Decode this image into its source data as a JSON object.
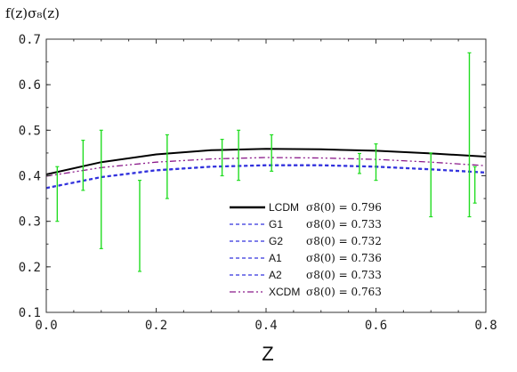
{
  "chart_data": {
    "type": "line",
    "ylabel": "f(z)σ₈(z)",
    "xlabel": "Z",
    "xlim": [
      0.0,
      0.8
    ],
    "ylim": [
      0.1,
      0.7
    ],
    "xticks": [
      "0.0",
      "0.2",
      "0.4",
      "0.6",
      "0.8"
    ],
    "yticks": [
      "0.1",
      "0.2",
      "0.3",
      "0.4",
      "0.5",
      "0.6",
      "0.7"
    ],
    "grid": false,
    "legend_position": "lower-right",
    "series": [
      {
        "name": "LCDM",
        "sigma8_label": "σ8(0) = 0.796",
        "color": "#000000",
        "dash": "solid",
        "x": [
          0.0,
          0.1,
          0.2,
          0.3,
          0.4,
          0.5,
          0.6,
          0.7,
          0.8
        ],
        "values": [
          0.403,
          0.43,
          0.447,
          0.456,
          0.459,
          0.458,
          0.455,
          0.449,
          0.442
        ]
      },
      {
        "name": "G1",
        "sigma8_label": "σ8(0) = 0.733",
        "color": "#3333dd",
        "dash": "dashed",
        "x": [
          0.0,
          0.1,
          0.2,
          0.3,
          0.4,
          0.5,
          0.6,
          0.7,
          0.8
        ],
        "values": [
          0.373,
          0.397,
          0.412,
          0.42,
          0.423,
          0.423,
          0.42,
          0.414,
          0.407
        ]
      },
      {
        "name": "G2",
        "sigma8_label": "σ8(0) = 0.732",
        "color": "#3333dd",
        "dash": "dashed",
        "x": [
          0.0,
          0.1,
          0.2,
          0.3,
          0.4,
          0.5,
          0.6,
          0.7,
          0.8
        ],
        "values": [
          0.372,
          0.396,
          0.411,
          0.419,
          0.422,
          0.422,
          0.419,
          0.413,
          0.406
        ]
      },
      {
        "name": "A1",
        "sigma8_label": "σ8(0) = 0.736",
        "color": "#3333dd",
        "dash": "dashed",
        "x": [
          0.0,
          0.1,
          0.2,
          0.3,
          0.4,
          0.5,
          0.6,
          0.7,
          0.8
        ],
        "values": [
          0.374,
          0.398,
          0.413,
          0.421,
          0.424,
          0.424,
          0.421,
          0.415,
          0.408
        ]
      },
      {
        "name": "A2",
        "sigma8_label": "σ8(0) = 0.733",
        "color": "#3333dd",
        "dash": "dashed",
        "x": [
          0.0,
          0.1,
          0.2,
          0.3,
          0.4,
          0.5,
          0.6,
          0.7,
          0.8
        ],
        "values": [
          0.373,
          0.397,
          0.412,
          0.42,
          0.423,
          0.423,
          0.42,
          0.414,
          0.407
        ]
      },
      {
        "name": "XCDM",
        "sigma8_label": "σ8(0) = 0.763",
        "color": "#8b1a8b",
        "dash": "dashdotdot",
        "x": [
          0.0,
          0.1,
          0.2,
          0.3,
          0.4,
          0.5,
          0.6,
          0.7,
          0.8
        ],
        "values": [
          0.399,
          0.418,
          0.43,
          0.437,
          0.44,
          0.439,
          0.436,
          0.43,
          0.422
        ]
      }
    ],
    "data_points": {
      "color": "#22dd22",
      "points": [
        {
          "x": 0.02,
          "y": 0.36,
          "err": 0.06
        },
        {
          "x": 0.067,
          "y": 0.423,
          "err": 0.055
        },
        {
          "x": 0.1,
          "y": 0.37,
          "err": 0.13
        },
        {
          "x": 0.17,
          "y": 0.29,
          "err": 0.1
        },
        {
          "x": 0.22,
          "y": 0.42,
          "err": 0.07
        },
        {
          "x": 0.32,
          "y": 0.44,
          "err": 0.04
        },
        {
          "x": 0.35,
          "y": 0.445,
          "err": 0.055
        },
        {
          "x": 0.41,
          "y": 0.45,
          "err": 0.04
        },
        {
          "x": 0.57,
          "y": 0.427,
          "err": 0.022
        },
        {
          "x": 0.6,
          "y": 0.43,
          "err": 0.04
        },
        {
          "x": 0.7,
          "y": 0.38,
          "err": 0.07
        },
        {
          "x": 0.77,
          "y": 0.49,
          "err": 0.18
        },
        {
          "x": 0.78,
          "y": 0.38,
          "err": 0.04
        }
      ]
    }
  }
}
